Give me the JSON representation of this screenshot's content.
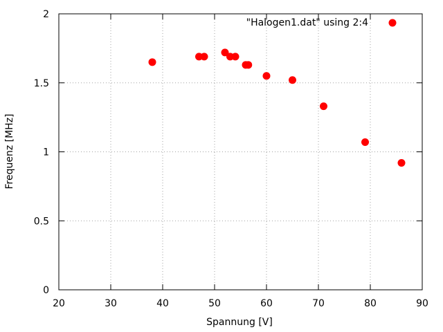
{
  "chart_data": {
    "type": "scatter",
    "title": "",
    "xlabel": "Spannung [V]",
    "ylabel": "Frequenz [MHz]",
    "xlim": [
      20,
      90
    ],
    "ylim": [
      0,
      2
    ],
    "xticks": [
      20,
      30,
      40,
      50,
      60,
      70,
      80,
      90
    ],
    "yticks": [
      0,
      0.5,
      1,
      1.5,
      2
    ],
    "ytick_labels": [
      "0",
      "0.5",
      "1",
      "1.5",
      "2"
    ],
    "grid": true,
    "legend_position": "top-right",
    "series": [
      {
        "name": "\"Halogen1.dat\" using 2:4",
        "color": "#ff0000",
        "points": [
          {
            "x": 38,
            "y": 1.65
          },
          {
            "x": 47,
            "y": 1.69
          },
          {
            "x": 48,
            "y": 1.69
          },
          {
            "x": 52,
            "y": 1.72
          },
          {
            "x": 53,
            "y": 1.69
          },
          {
            "x": 54,
            "y": 1.69
          },
          {
            "x": 56,
            "y": 1.63
          },
          {
            "x": 56.5,
            "y": 1.63
          },
          {
            "x": 60,
            "y": 1.55
          },
          {
            "x": 65,
            "y": 1.52
          },
          {
            "x": 71,
            "y": 1.33
          },
          {
            "x": 79,
            "y": 1.07
          },
          {
            "x": 86,
            "y": 0.92
          }
        ]
      }
    ]
  }
}
